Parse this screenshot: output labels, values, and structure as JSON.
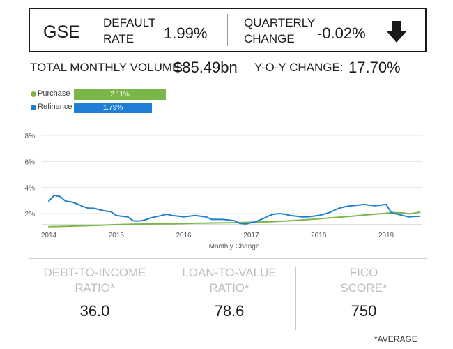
{
  "header": {
    "gse": "GSE",
    "default_rate_label": "DEFAULT\nRATE",
    "default_rate_value": "1.99%",
    "quarterly_change_label": "QUARTERLY\nCHANGE",
    "quarterly_change_value": "-0.02%",
    "trend_icon": "arrow-down-icon"
  },
  "volume": {
    "total_label": "TOTAL MONTHLY VOLUME:",
    "total_value": "$85.49bn",
    "yoy_label": "Y-O-Y CHANGE:",
    "yoy_value": "17.70%"
  },
  "legend": {
    "purchase_label": "Purchase",
    "purchase_value": "2.11%",
    "refinance_label": "Refinance",
    "refinance_value": "1.79%"
  },
  "chart_data": {
    "type": "line",
    "xlabel": "Monthly Change",
    "ylabel": "",
    "ylim": [
      0,
      8
    ],
    "xlim": [
      2014.0,
      2019.55
    ],
    "yticks": [
      "2%",
      "4%",
      "6%",
      "8%"
    ],
    "ytick_values": [
      2,
      4,
      6,
      8
    ],
    "xticks": [
      "2014",
      "2015",
      "2016",
      "2017",
      "2018",
      "2019"
    ],
    "xtick_values": [
      2014,
      2015,
      2016,
      2017,
      2018,
      2019
    ],
    "grid": "horizontal",
    "colors": {
      "Purchase": "#7ab648",
      "Refinance": "#1f7fd4"
    },
    "series": [
      {
        "name": "Purchase",
        "x": [
          2014.0,
          2014.25,
          2014.5,
          2014.75,
          2015.0,
          2015.25,
          2015.5,
          2015.75,
          2016.0,
          2016.25,
          2016.5,
          2016.75,
          2017.0,
          2017.25,
          2017.5,
          2017.75,
          2018.0,
          2018.25,
          2018.5,
          2018.75,
          2019.0,
          2019.1,
          2019.25,
          2019.35,
          2019.45,
          2019.5
        ],
        "values": [
          1.0,
          1.02,
          1.06,
          1.1,
          1.15,
          1.18,
          1.2,
          1.22,
          1.24,
          1.26,
          1.28,
          1.3,
          1.33,
          1.36,
          1.42,
          1.5,
          1.6,
          1.7,
          1.8,
          1.92,
          2.02,
          2.08,
          2.05,
          1.98,
          2.06,
          2.11
        ]
      },
      {
        "name": "Refinance",
        "x": [
          2014.0,
          2014.08,
          2014.17,
          2014.25,
          2014.33,
          2014.42,
          2014.5,
          2014.58,
          2014.67,
          2014.75,
          2014.83,
          2014.92,
          2015.0,
          2015.08,
          2015.17,
          2015.25,
          2015.33,
          2015.42,
          2015.5,
          2015.58,
          2015.67,
          2015.75,
          2015.83,
          2015.92,
          2016.0,
          2016.08,
          2016.17,
          2016.25,
          2016.33,
          2016.42,
          2016.5,
          2016.58,
          2016.67,
          2016.75,
          2016.83,
          2016.92,
          2017.0,
          2017.08,
          2017.17,
          2017.25,
          2017.33,
          2017.42,
          2017.5,
          2017.58,
          2017.67,
          2017.75,
          2017.83,
          2017.92,
          2018.0,
          2018.08,
          2018.17,
          2018.25,
          2018.33,
          2018.42,
          2018.5,
          2018.58,
          2018.67,
          2018.75,
          2018.83,
          2018.92,
          2019.0,
          2019.08,
          2019.17,
          2019.25,
          2019.33,
          2019.42,
          2019.5
        ],
        "values": [
          2.95,
          3.4,
          3.3,
          2.95,
          2.9,
          2.75,
          2.55,
          2.42,
          2.4,
          2.3,
          2.2,
          2.15,
          1.85,
          1.8,
          1.75,
          1.45,
          1.42,
          1.5,
          1.65,
          1.75,
          1.85,
          1.95,
          1.85,
          1.8,
          1.75,
          1.8,
          1.85,
          1.8,
          1.75,
          1.55,
          1.55,
          1.55,
          1.5,
          1.45,
          1.25,
          1.2,
          1.3,
          1.4,
          1.6,
          1.8,
          1.95,
          2.0,
          1.95,
          1.85,
          1.8,
          1.75,
          1.75,
          1.8,
          1.85,
          1.95,
          2.1,
          2.3,
          2.45,
          2.55,
          2.6,
          2.65,
          2.7,
          2.65,
          2.6,
          2.65,
          2.7,
          2.05,
          1.95,
          1.85,
          1.75,
          1.78,
          1.79
        ]
      }
    ]
  },
  "stats": {
    "dti_label": "DEBT-TO-INCOME\nRATIO*",
    "dti_value": "36.0",
    "ltv_label": "LOAN-TO-VALUE\nRATIO*",
    "ltv_value": "78.6",
    "fico_label": "FICO\nSCORE*",
    "fico_value": "750"
  },
  "footnote": "*AVERAGE"
}
